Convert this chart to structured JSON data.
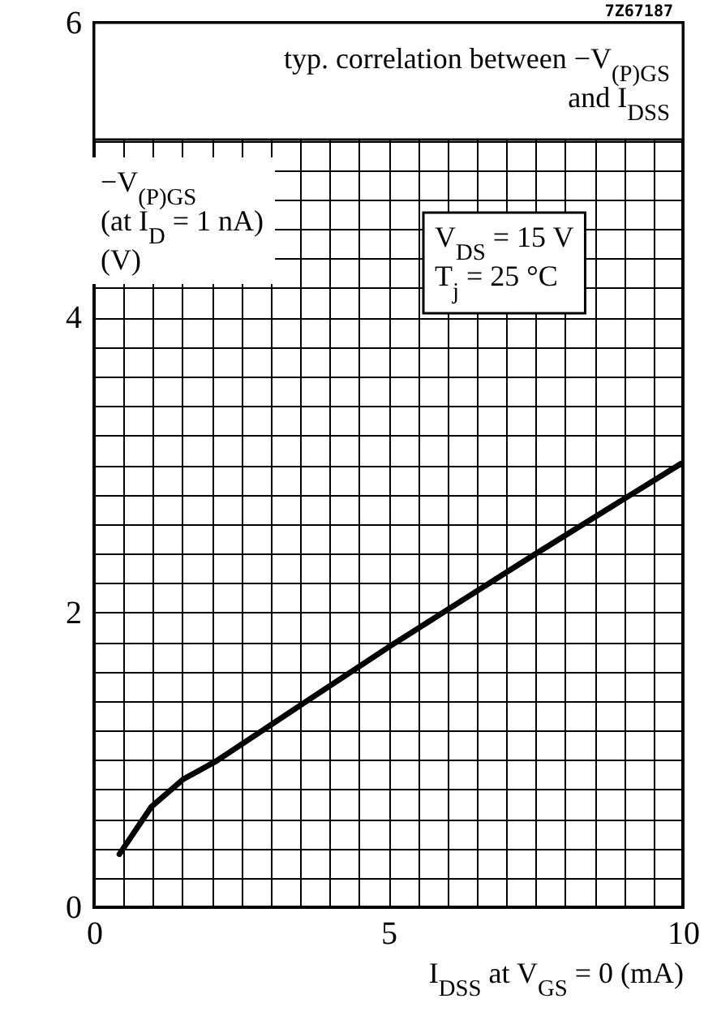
{
  "chart_data": {
    "type": "line",
    "title": "typ. correlation between −V$_{(P)GS}$\nand I$_{DSS}$",
    "xlabel": "I$_{DSS}$ at V$_{GS}$ = 0 (mA)",
    "ylabel": "−V$_{(P)GS}$\n(at I$_{D}$ = 1 nA)\n(V)",
    "annotations": [
      "7Z67187",
      "V$_{DS}$ = 15 V\nT$_{j}$ = 25 °C"
    ],
    "series": [
      {
        "color": "#000000",
        "x": [
          0.43,
          0.97,
          1.52,
          2.07,
          3.54,
          5.06,
          5.93,
          7.47,
          8.96,
          9.97
        ],
        "values": [
          0.36,
          0.68,
          0.87,
          0.99,
          1.38,
          1.78,
          2.0,
          2.39,
          2.76,
          3.01
        ]
      }
    ],
    "xlim": [
      0,
      10
    ],
    "ylim": [
      0,
      6
    ],
    "xticks": [
      0,
      {
        "value": 0.5,
        "label": null
      },
      {
        "value": 1,
        "label": null
      },
      {
        "value": 1.5,
        "label": null
      },
      {
        "value": 2,
        "label": null
      },
      {
        "value": 2.5,
        "label": null
      },
      {
        "value": 3,
        "label": null
      },
      {
        "value": 3.5,
        "label": null
      },
      {
        "value": 4,
        "label": null
      },
      {
        "value": 4.5,
        "label": null
      },
      5,
      {
        "value": 5.5,
        "label": null
      },
      {
        "value": 6,
        "label": null
      },
      {
        "value": 6.5,
        "label": null
      },
      {
        "value": 7,
        "label": null
      },
      {
        "value": 7.5,
        "label": null
      },
      {
        "value": 8,
        "label": null
      },
      {
        "value": 8.5,
        "label": null
      },
      {
        "value": 9,
        "label": null
      },
      {
        "value": 9.5,
        "label": null
      },
      10
    ],
    "yticks": [
      0,
      {
        "value": 0.2,
        "label": null
      },
      {
        "value": 0.4,
        "label": null
      },
      {
        "value": 0.6,
        "label": null
      },
      {
        "value": 0.8,
        "label": null
      },
      {
        "value": 1,
        "label": null
      },
      {
        "value": 1.2,
        "label": null
      },
      {
        "value": 1.4,
        "label": null
      },
      {
        "value": 1.6,
        "label": null
      },
      {
        "value": 1.8,
        "label": null
      },
      2,
      {
        "value": 2.2,
        "label": null
      },
      {
        "value": 2.4,
        "label": null
      },
      {
        "value": 2.6,
        "label": null
      },
      {
        "value": 2.8,
        "label": null
      },
      {
        "value": 3,
        "label": null
      },
      {
        "value": 3.2,
        "label": null
      },
      {
        "value": 3.4,
        "label": null
      },
      {
        "value": 3.6,
        "label": null
      },
      {
        "value": 3.8,
        "label": null
      },
      4,
      {
        "value": 4.2,
        "label": null
      },
      {
        "value": 4.4,
        "label": null
      },
      {
        "value": 4.6,
        "label": null
      },
      {
        "value": 4.8,
        "label": null
      },
      {
        "value": 5,
        "label": null
      },
      {
        "value": 5.2,
        "label": null
      },
      6
    ],
    "grid": true,
    "marker": "none",
    "line_style": "solid"
  }
}
